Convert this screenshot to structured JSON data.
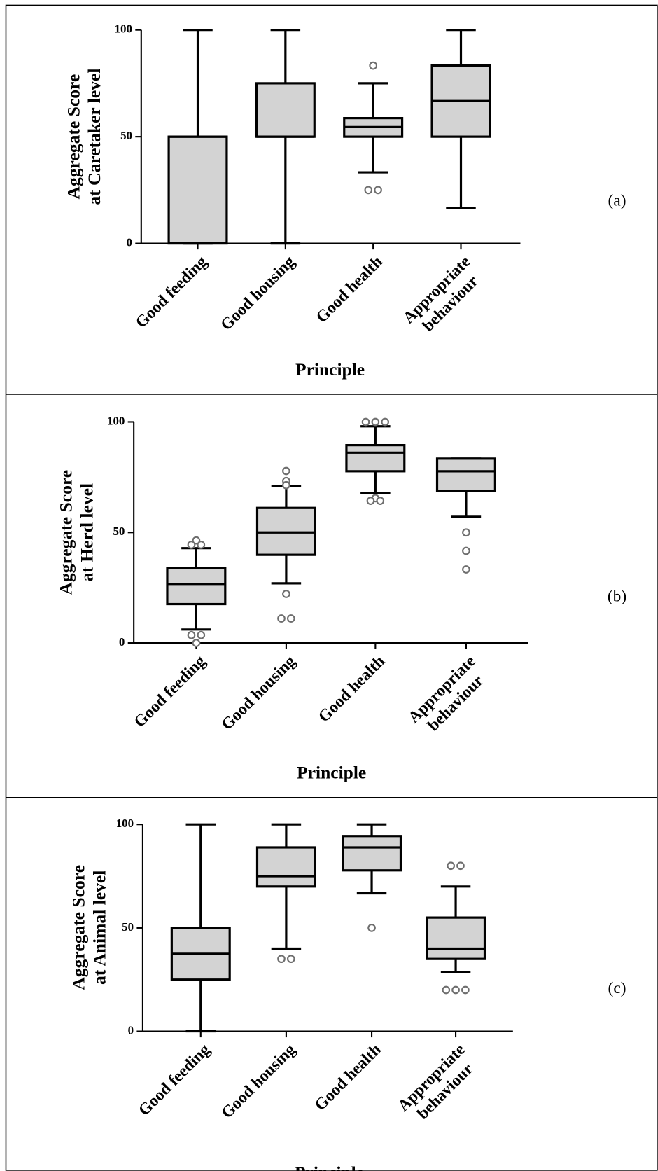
{
  "chart_data": [
    {
      "type": "box",
      "panel_label": "(a)",
      "ylabel": [
        "Aggregate Score",
        "at Caretaker level"
      ],
      "xlabel": "Principle",
      "categories": [
        [
          "Good feeding"
        ],
        [
          "Good housing"
        ],
        [
          "Good health"
        ],
        [
          "Appropriate",
          "behaviour"
        ]
      ],
      "ylim": [
        0,
        100
      ],
      "yticks": [
        0,
        50,
        100
      ],
      "color": "#d3d3d3",
      "boxes": [
        {
          "min": 0,
          "q1": 0,
          "median": 50,
          "q3": 50,
          "max": 100,
          "outliers": []
        },
        {
          "min": 0,
          "q1": 50,
          "median": 50,
          "q3": 75,
          "max": 100,
          "outliers": []
        },
        {
          "min": 33.3,
          "q1": 50,
          "median": 54.5,
          "q3": 58.7,
          "max": 75,
          "outliers": [
            83.3,
            25,
            25
          ]
        },
        {
          "min": 16.7,
          "q1": 50,
          "median": 66.7,
          "q3": 83.3,
          "max": 100,
          "outliers": []
        }
      ]
    },
    {
      "type": "box",
      "panel_label": "(b)",
      "ylabel": [
        "Aggregate Score",
        "at Herd level"
      ],
      "xlabel": "Principle",
      "categories": [
        [
          "Good feeding"
        ],
        [
          "Good housing"
        ],
        [
          "Good health"
        ],
        [
          "Appropriate",
          "behaviour"
        ]
      ],
      "ylim": [
        0,
        100
      ],
      "yticks": [
        0,
        50,
        100
      ],
      "color": "#d3d3d3",
      "boxes": [
        {
          "min": 6.1,
          "q1": 17.6,
          "median": 26.7,
          "q3": 33.8,
          "max": 42.9,
          "outliers": [
            44.4,
            44.4,
            46.4,
            3.6,
            3.6,
            0
          ]
        },
        {
          "min": 27,
          "q1": 39.9,
          "median": 50,
          "q3": 61.1,
          "max": 71,
          "outliers": [
            77.8,
            73.3,
            71.4,
            22.2,
            11.1,
            11.1
          ]
        },
        {
          "min": 67.9,
          "q1": 77.7,
          "median": 86.1,
          "q3": 89.5,
          "max": 98,
          "outliers": [
            100,
            100,
            100,
            65.5,
            64.3,
            64.3
          ]
        },
        {
          "min": 57.1,
          "q1": 68.9,
          "median": 77.7,
          "q3": 83.4,
          "max": 83.4,
          "outliers": [
            50,
            41.7,
            33.3
          ]
        }
      ]
    },
    {
      "type": "box",
      "panel_label": "(c)",
      "ylabel": [
        "Aggregate Score",
        "at Animal level"
      ],
      "xlabel": "Principle",
      "categories": [
        [
          "Good feeding"
        ],
        [
          "Good housing"
        ],
        [
          "Good health"
        ],
        [
          "Appropriate",
          "behaviour"
        ]
      ],
      "ylim": [
        0,
        100
      ],
      "yticks": [
        0,
        50,
        100
      ],
      "color": "#d3d3d3",
      "boxes": [
        {
          "min": 0,
          "q1": 25,
          "median": 37.5,
          "q3": 50,
          "max": 100,
          "outliers": []
        },
        {
          "min": 40,
          "q1": 70,
          "median": 75,
          "q3": 88.9,
          "max": 100,
          "outliers": [
            35,
            35
          ]
        },
        {
          "min": 66.7,
          "q1": 77.8,
          "median": 88.9,
          "q3": 94.4,
          "max": 100,
          "outliers": [
            50
          ]
        },
        {
          "min": 28.6,
          "q1": 35,
          "median": 40,
          "q3": 55,
          "max": 70,
          "outliers": [
            80,
            80,
            20,
            20,
            20
          ]
        }
      ]
    }
  ]
}
